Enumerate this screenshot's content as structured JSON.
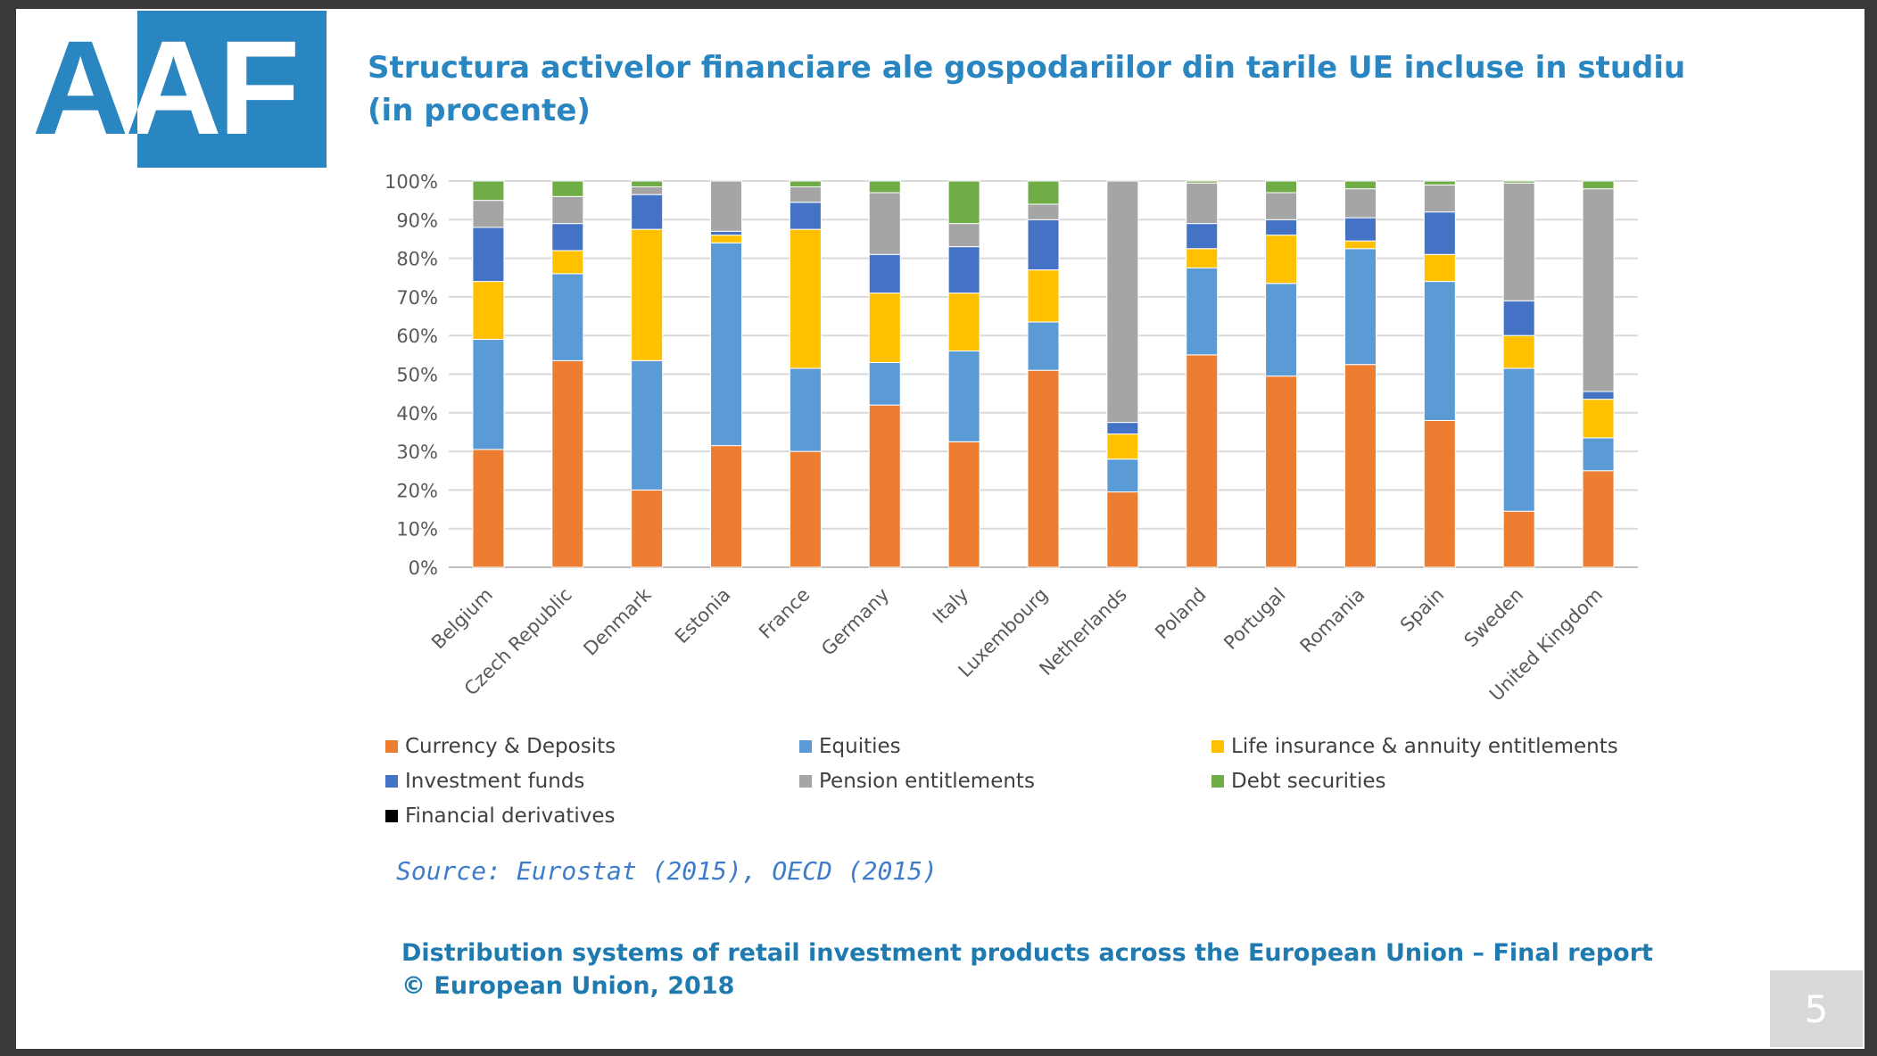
{
  "slide": {
    "logo_text": "AAF",
    "logo_color": "#2a86c1",
    "title_line1": "Structura activelor financiare ale gospodariilor din tarile UE incluse in studiu",
    "title_line2": "(in procente)",
    "source": "Source: Eurostat (2015), OECD (2015)",
    "footer_line1": "Distribution systems of retail investment products across the European Union – Final report",
    "footer_line2": "© European Union, 2018",
    "page_number": "5"
  },
  "chart_data": {
    "type": "bar",
    "stacked": true,
    "title": "",
    "xlabel": "",
    "ylabel": "",
    "ylim": [
      0,
      100
    ],
    "y_tick_labels": [
      "0%",
      "10%",
      "20%",
      "30%",
      "40%",
      "50%",
      "60%",
      "70%",
      "80%",
      "90%",
      "100%"
    ],
    "grid": true,
    "legend_position": "bottom",
    "categories": [
      "Belgium",
      "Czech Republic",
      "Denmark",
      "Estonia",
      "France",
      "Germany",
      "Italy",
      "Luxembourg",
      "Netherlands",
      "Poland",
      "Portugal",
      "Romania",
      "Spain",
      "Sweden",
      "United Kingdom"
    ],
    "series": [
      {
        "name": "Currency & Deposits",
        "color": "#ed7d31",
        "values": [
          30.5,
          53.5,
          20,
          31.5,
          30,
          42,
          32.5,
          51,
          19.5,
          55,
          49.5,
          52.5,
          38,
          14.5,
          25
        ]
      },
      {
        "name": "Equities",
        "color": "#5b9bd5",
        "values": [
          28.5,
          22.5,
          33.5,
          52.5,
          21.5,
          11,
          23.5,
          12.5,
          8.5,
          22.5,
          24,
          30,
          36,
          37,
          8.5
        ]
      },
      {
        "name": "Life insurance & annuity entitlements",
        "color": "#ffc000",
        "values": [
          15,
          6,
          34,
          2,
          36,
          18,
          15,
          13.5,
          6.5,
          5,
          12.5,
          2,
          7,
          8.5,
          10
        ]
      },
      {
        "name": "Investment funds",
        "color": "#4472c4",
        "values": [
          14,
          7,
          9,
          1,
          7,
          10,
          12,
          13,
          3,
          6.5,
          4,
          6,
          11,
          9,
          2
        ]
      },
      {
        "name": "Pension entitlements",
        "color": "#a5a5a5",
        "values": [
          7,
          7,
          2,
          13,
          4,
          16,
          6,
          4,
          62.5,
          10.5,
          7,
          7.5,
          7,
          30.5,
          52.5
        ]
      },
      {
        "name": "Debt securities",
        "color": "#70ad47",
        "values": [
          5,
          4,
          1.5,
          0,
          1.5,
          3,
          11,
          6,
          0,
          0.5,
          3,
          2,
          1,
          0.5,
          2
        ]
      },
      {
        "name": "Financial derivatives",
        "color": "#000000",
        "values": [
          0,
          0,
          0,
          0,
          0,
          0,
          0,
          0,
          0,
          0,
          0,
          0,
          0,
          0,
          0
        ]
      }
    ]
  }
}
